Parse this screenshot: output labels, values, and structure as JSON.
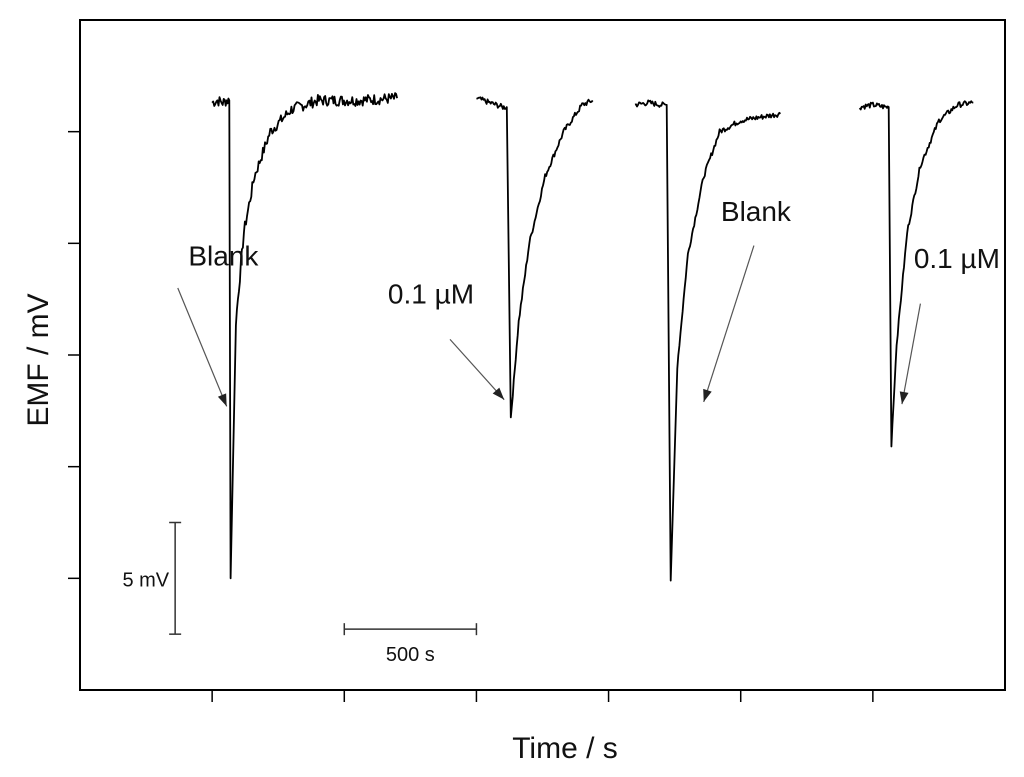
{
  "chart_data": {
    "type": "line",
    "title": "",
    "xlabel": "Time / s",
    "ylabel": "EMF / mV",
    "xlim": [
      -500,
      3000
    ],
    "ylim": [
      -22.5,
      7.5
    ],
    "grid": false,
    "legend": "none",
    "tick_step_x": 500,
    "tick_step_y": 5,
    "series": [
      {
        "x": [
          0,
          20,
          40,
          55,
          65,
          70,
          90,
          120,
          160,
          220,
          300,
          400,
          550,
          700
        ],
        "y": [
          3.8,
          3.9,
          3.8,
          3.9,
          3.9,
          -17.5,
          -6,
          -2,
          0.5,
          2.5,
          3.5,
          3.9,
          3.9,
          4.0
        ],
        "noise": 0.25
      },
      {
        "x": [
          1000,
          1050,
          1100,
          1115,
          1130,
          1160,
          1200,
          1260,
          1330,
          1400,
          1440
        ],
        "y": [
          4.0,
          3.8,
          3.6,
          3.6,
          -10.3,
          -6,
          -2.5,
          0.5,
          2.5,
          3.7,
          3.9
        ],
        "noise": 0.12
      },
      {
        "x": [
          1600,
          1650,
          1700,
          1720,
          1735,
          1760,
          1800,
          1860,
          1920,
          2000,
          2150
        ],
        "y": [
          3.7,
          3.8,
          3.7,
          3.7,
          -17.6,
          -8,
          -3,
          0.5,
          2.5,
          3.0,
          3.3
        ],
        "noise": 0.12
      },
      {
        "x": [
          2450,
          2500,
          2550,
          2560,
          2570,
          2590,
          2630,
          2680,
          2750,
          2820,
          2880
        ],
        "y": [
          3.6,
          3.7,
          3.6,
          3.6,
          -11.5,
          -7,
          -2,
          1,
          3,
          3.7,
          3.8
        ],
        "noise": 0.12
      }
    ],
    "annotations": [
      {
        "text": "Blank",
        "text_x": -90,
        "text_y": -3.5,
        "arrow_from": [
          -130,
          -4.5
        ],
        "arrow_to": [
          55,
          -9.8
        ]
      },
      {
        "text": "0.1 µM",
        "text_x": 665,
        "text_y": -5.2,
        "arrow_from": [
          900,
          -6.8
        ],
        "arrow_to": [
          1105,
          -9.5
        ]
      },
      {
        "text": "Blank",
        "text_x": 1925,
        "text_y": -1.5,
        "arrow_from": [
          2050,
          -2.6
        ],
        "arrow_to": [
          1860,
          -9.6
        ]
      },
      {
        "text": "0.1 µM",
        "text_x": 2655,
        "text_y": -3.6,
        "arrow_from": [
          2680,
          -5.2
        ],
        "arrow_to": [
          2610,
          -9.7
        ]
      }
    ],
    "scale_bars": {
      "y": {
        "label": "5 mV",
        "x_data": -140,
        "from": -20,
        "to": -15
      },
      "x": {
        "label": "500 s",
        "y_data": -20,
        "from": 500,
        "to": 1000
      }
    }
  }
}
